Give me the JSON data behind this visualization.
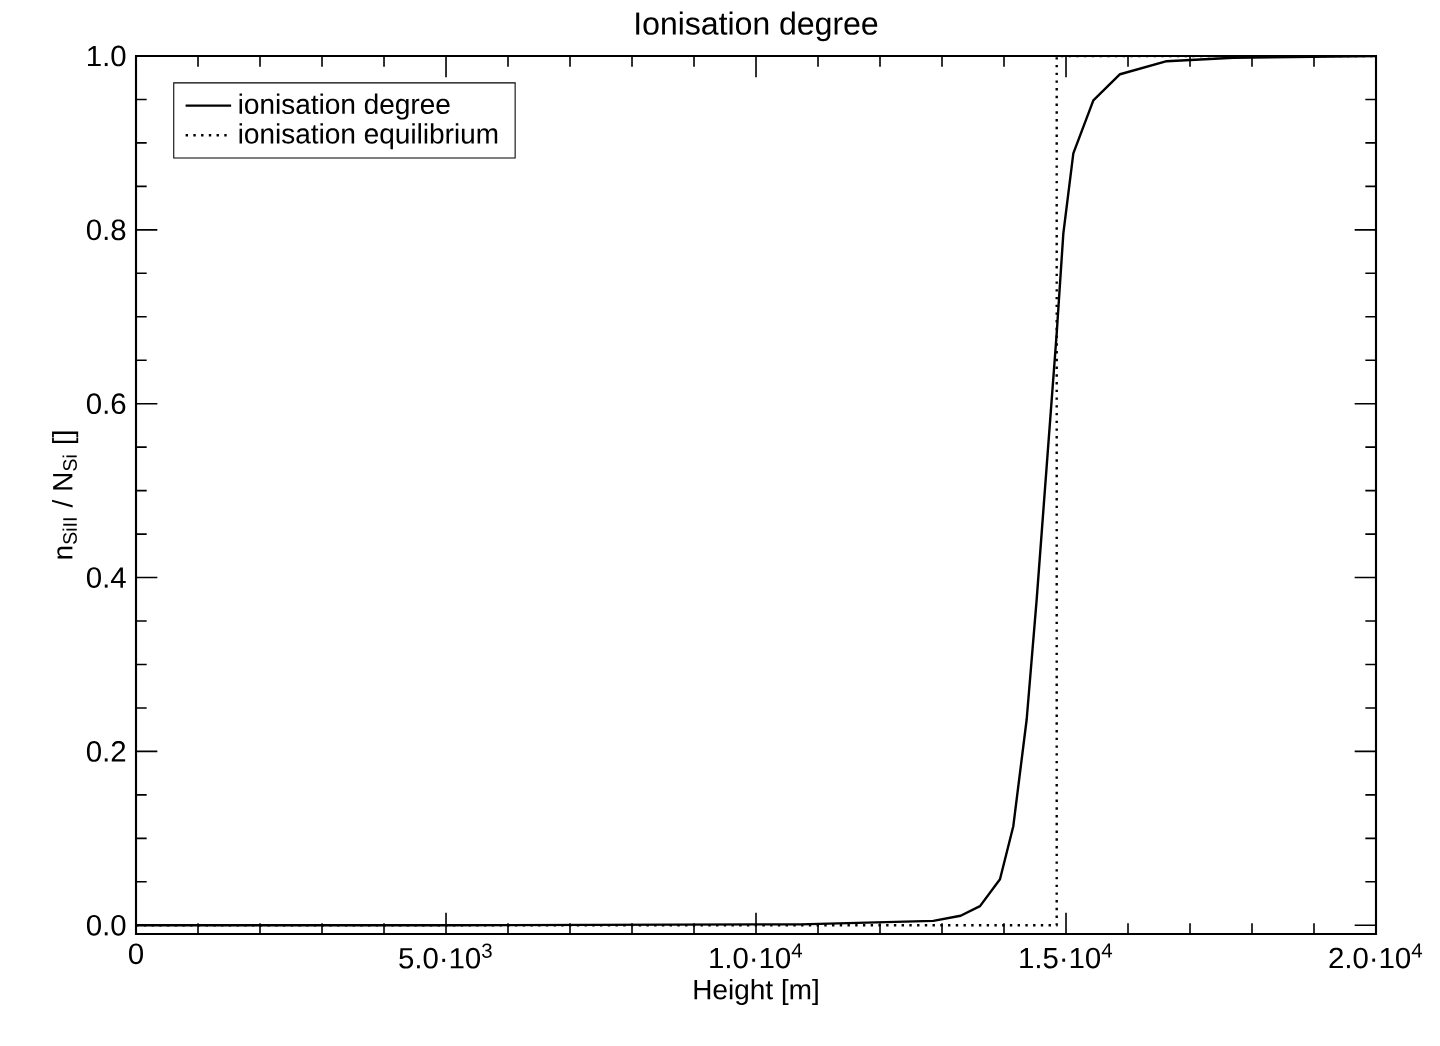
{
  "chart_data": {
    "type": "line",
    "title": "Ionisation degree",
    "xlabel": "Height [m]",
    "ylabel": "n$_{SiII}$ / N$_{Si}$ []",
    "xlim": [
      0,
      20000
    ],
    "ylim": [
      -0.01,
      1.0
    ],
    "xticks": [
      0,
      {
        "value": 5000,
        "label": "5.0·10$^{3}$"
      },
      {
        "value": 10000,
        "label": "1.0·10$^{4}$"
      },
      {
        "value": 15000,
        "label": "1.5·10$^{4}$"
      },
      {
        "value": 20000,
        "label": "2.0·10$^{4}$"
      }
    ],
    "yticks": [
      {
        "value": 0,
        "label": "0.0"
      },
      {
        "value": 0.2,
        "label": "0.2"
      },
      {
        "value": 0.4,
        "label": "0.4"
      },
      {
        "value": 0.6,
        "label": "0.6"
      },
      {
        "value": 0.8,
        "label": "0.8"
      },
      {
        "value": 1.0,
        "label": "1.0"
      }
    ],
    "legend": "top left",
    "grid": false,
    "marker": "none",
    "series": [
      {
        "name": "ionisation degree",
        "color": "#000000",
        "line_style": "solid",
        "x": [
          0,
          5000,
          10000,
          10710,
          12860,
          13300,
          13613,
          13935,
          14150,
          14366,
          14527,
          14688,
          14850,
          14957,
          15118,
          15441,
          15871,
          16624,
          17699,
          20000
        ],
        "values": [
          0.0,
          0.0,
          0.001,
          0.001,
          0.005,
          0.011,
          0.022,
          0.053,
          0.114,
          0.237,
          0.375,
          0.528,
          0.681,
          0.796,
          0.888,
          0.949,
          0.979,
          0.994,
          0.998,
          1.0
        ]
      },
      {
        "name": "ionisation equilibrium",
        "color": "#000000",
        "line_style": "dotted",
        "x": [
          0,
          14850,
          14850,
          20000
        ],
        "values": [
          0,
          0,
          1,
          1
        ]
      }
    ]
  }
}
